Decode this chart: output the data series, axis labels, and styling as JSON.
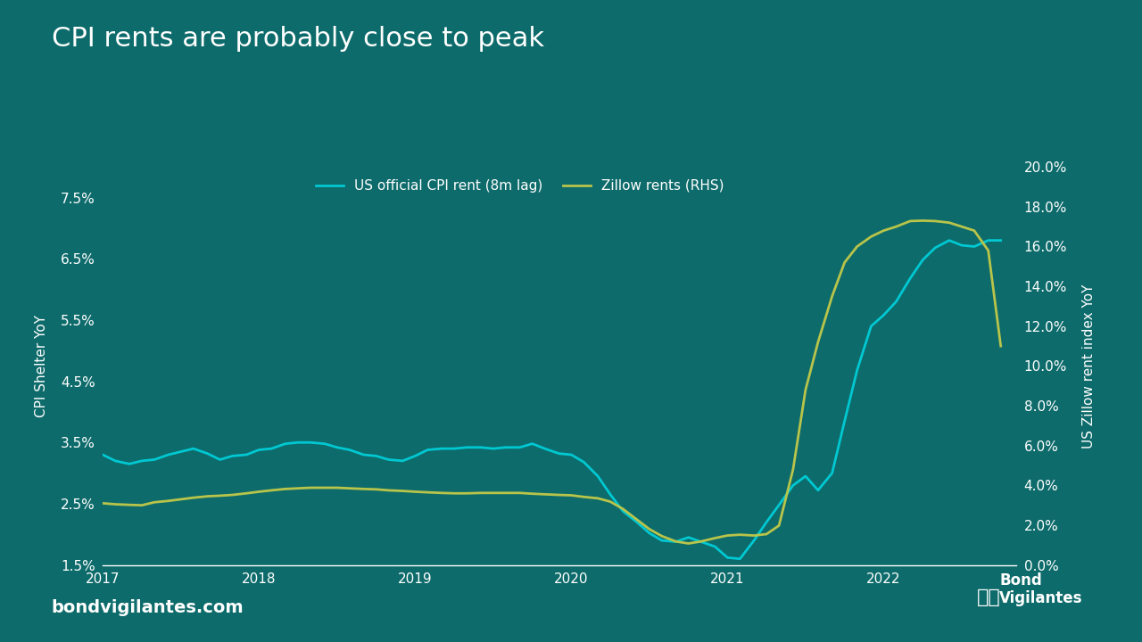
{
  "title": "CPI rents are probably close to peak",
  "background_color": "#0e6b6b",
  "plot_bg_color": "#0e6b6b",
  "text_color": "#ffffff",
  "line1_color": "#00c8d2",
  "line2_color": "#b8c44a",
  "line1_label": "US official CPI rent (8m lag)",
  "line2_label": "Zillow rents (RHS)",
  "ylabel_left": "CPI Shelter YoY",
  "ylabel_right": "US Zillow rent index YoY",
  "footer_left": "bondvigilantes.com",
  "footer_right": "Bond\nVigilantes",
  "ylim_left": [
    0.015,
    0.08
  ],
  "ylim_right": [
    0.0,
    0.2
  ],
  "yticks_left": [
    0.015,
    0.025,
    0.035,
    0.045,
    0.055,
    0.065,
    0.075
  ],
  "yticks_right": [
    0.0,
    0.02,
    0.04,
    0.06,
    0.08,
    0.1,
    0.12,
    0.14,
    0.16,
    0.18,
    0.2
  ],
  "xticks": [
    2017,
    2018,
    2019,
    2020,
    2021,
    2022
  ],
  "xlim": [
    2017.0,
    2022.85
  ],
  "cpi_x": [
    2017.0,
    2017.08,
    2017.17,
    2017.25,
    2017.33,
    2017.42,
    2017.5,
    2017.58,
    2017.67,
    2017.75,
    2017.83,
    2017.92,
    2018.0,
    2018.08,
    2018.17,
    2018.25,
    2018.33,
    2018.42,
    2018.5,
    2018.58,
    2018.67,
    2018.75,
    2018.83,
    2018.92,
    2019.0,
    2019.08,
    2019.17,
    2019.25,
    2019.33,
    2019.42,
    2019.5,
    2019.58,
    2019.67,
    2019.75,
    2019.83,
    2019.92,
    2020.0,
    2020.08,
    2020.17,
    2020.25,
    2020.33,
    2020.42,
    2020.5,
    2020.58,
    2020.67,
    2020.75,
    2020.83,
    2020.92,
    2021.0,
    2021.08,
    2021.17,
    2021.25,
    2021.33,
    2021.42,
    2021.5,
    2021.58,
    2021.67,
    2021.75,
    2021.83,
    2021.92,
    2022.0,
    2022.08,
    2022.17,
    2022.25,
    2022.33,
    2022.42,
    2022.5,
    2022.58,
    2022.67,
    2022.75
  ],
  "cpi_y": [
    0.033,
    0.032,
    0.0315,
    0.032,
    0.0322,
    0.033,
    0.0335,
    0.034,
    0.0332,
    0.0322,
    0.0328,
    0.033,
    0.0338,
    0.034,
    0.0348,
    0.035,
    0.035,
    0.0348,
    0.0342,
    0.0338,
    0.033,
    0.0328,
    0.0322,
    0.032,
    0.0328,
    0.0338,
    0.034,
    0.034,
    0.0342,
    0.0342,
    0.034,
    0.0342,
    0.0342,
    0.0348,
    0.034,
    0.0332,
    0.033,
    0.0318,
    0.0295,
    0.0265,
    0.0238,
    0.022,
    0.0202,
    0.019,
    0.0188,
    0.0195,
    0.0188,
    0.018,
    0.0162,
    0.016,
    0.019,
    0.022,
    0.0248,
    0.028,
    0.0295,
    0.0272,
    0.03,
    0.0385,
    0.0468,
    0.054,
    0.0558,
    0.058,
    0.0618,
    0.0648,
    0.0668,
    0.068,
    0.0672,
    0.067,
    0.068,
    0.068
  ],
  "zillow_x": [
    2017.0,
    2017.08,
    2017.17,
    2017.25,
    2017.33,
    2017.42,
    2017.5,
    2017.58,
    2017.67,
    2017.75,
    2017.83,
    2017.92,
    2018.0,
    2018.08,
    2018.17,
    2018.25,
    2018.33,
    2018.42,
    2018.5,
    2018.58,
    2018.67,
    2018.75,
    2018.83,
    2018.92,
    2019.0,
    2019.08,
    2019.17,
    2019.25,
    2019.33,
    2019.42,
    2019.5,
    2019.58,
    2019.67,
    2019.75,
    2019.83,
    2019.92,
    2020.0,
    2020.08,
    2020.17,
    2020.25,
    2020.33,
    2020.42,
    2020.5,
    2020.58,
    2020.67,
    2020.75,
    2020.83,
    2020.92,
    2021.0,
    2021.08,
    2021.17,
    2021.25,
    2021.33,
    2021.42,
    2021.5,
    2021.58,
    2021.67,
    2021.75,
    2021.83,
    2021.92,
    2022.0,
    2022.08,
    2022.17,
    2022.25,
    2022.33,
    2022.42,
    2022.5,
    2022.58,
    2022.67,
    2022.75
  ],
  "zillow_y": [
    0.031,
    0.0305,
    0.0302,
    0.03,
    0.0315,
    0.0322,
    0.033,
    0.0338,
    0.0345,
    0.0348,
    0.0352,
    0.036,
    0.0368,
    0.0375,
    0.0382,
    0.0385,
    0.0388,
    0.0388,
    0.0388,
    0.0385,
    0.0382,
    0.038,
    0.0375,
    0.0372,
    0.0368,
    0.0365,
    0.0362,
    0.036,
    0.036,
    0.0362,
    0.0362,
    0.0362,
    0.0362,
    0.0358,
    0.0355,
    0.0352,
    0.035,
    0.0342,
    0.0335,
    0.0318,
    0.0282,
    0.0228,
    0.018,
    0.0145,
    0.0118,
    0.0108,
    0.0118,
    0.0135,
    0.0148,
    0.0152,
    0.0148,
    0.0155,
    0.0198,
    0.048,
    0.088,
    0.112,
    0.135,
    0.152,
    0.16,
    0.165,
    0.168,
    0.17,
    0.1728,
    0.173,
    0.1728,
    0.172,
    0.17,
    0.168,
    0.158,
    0.11
  ]
}
